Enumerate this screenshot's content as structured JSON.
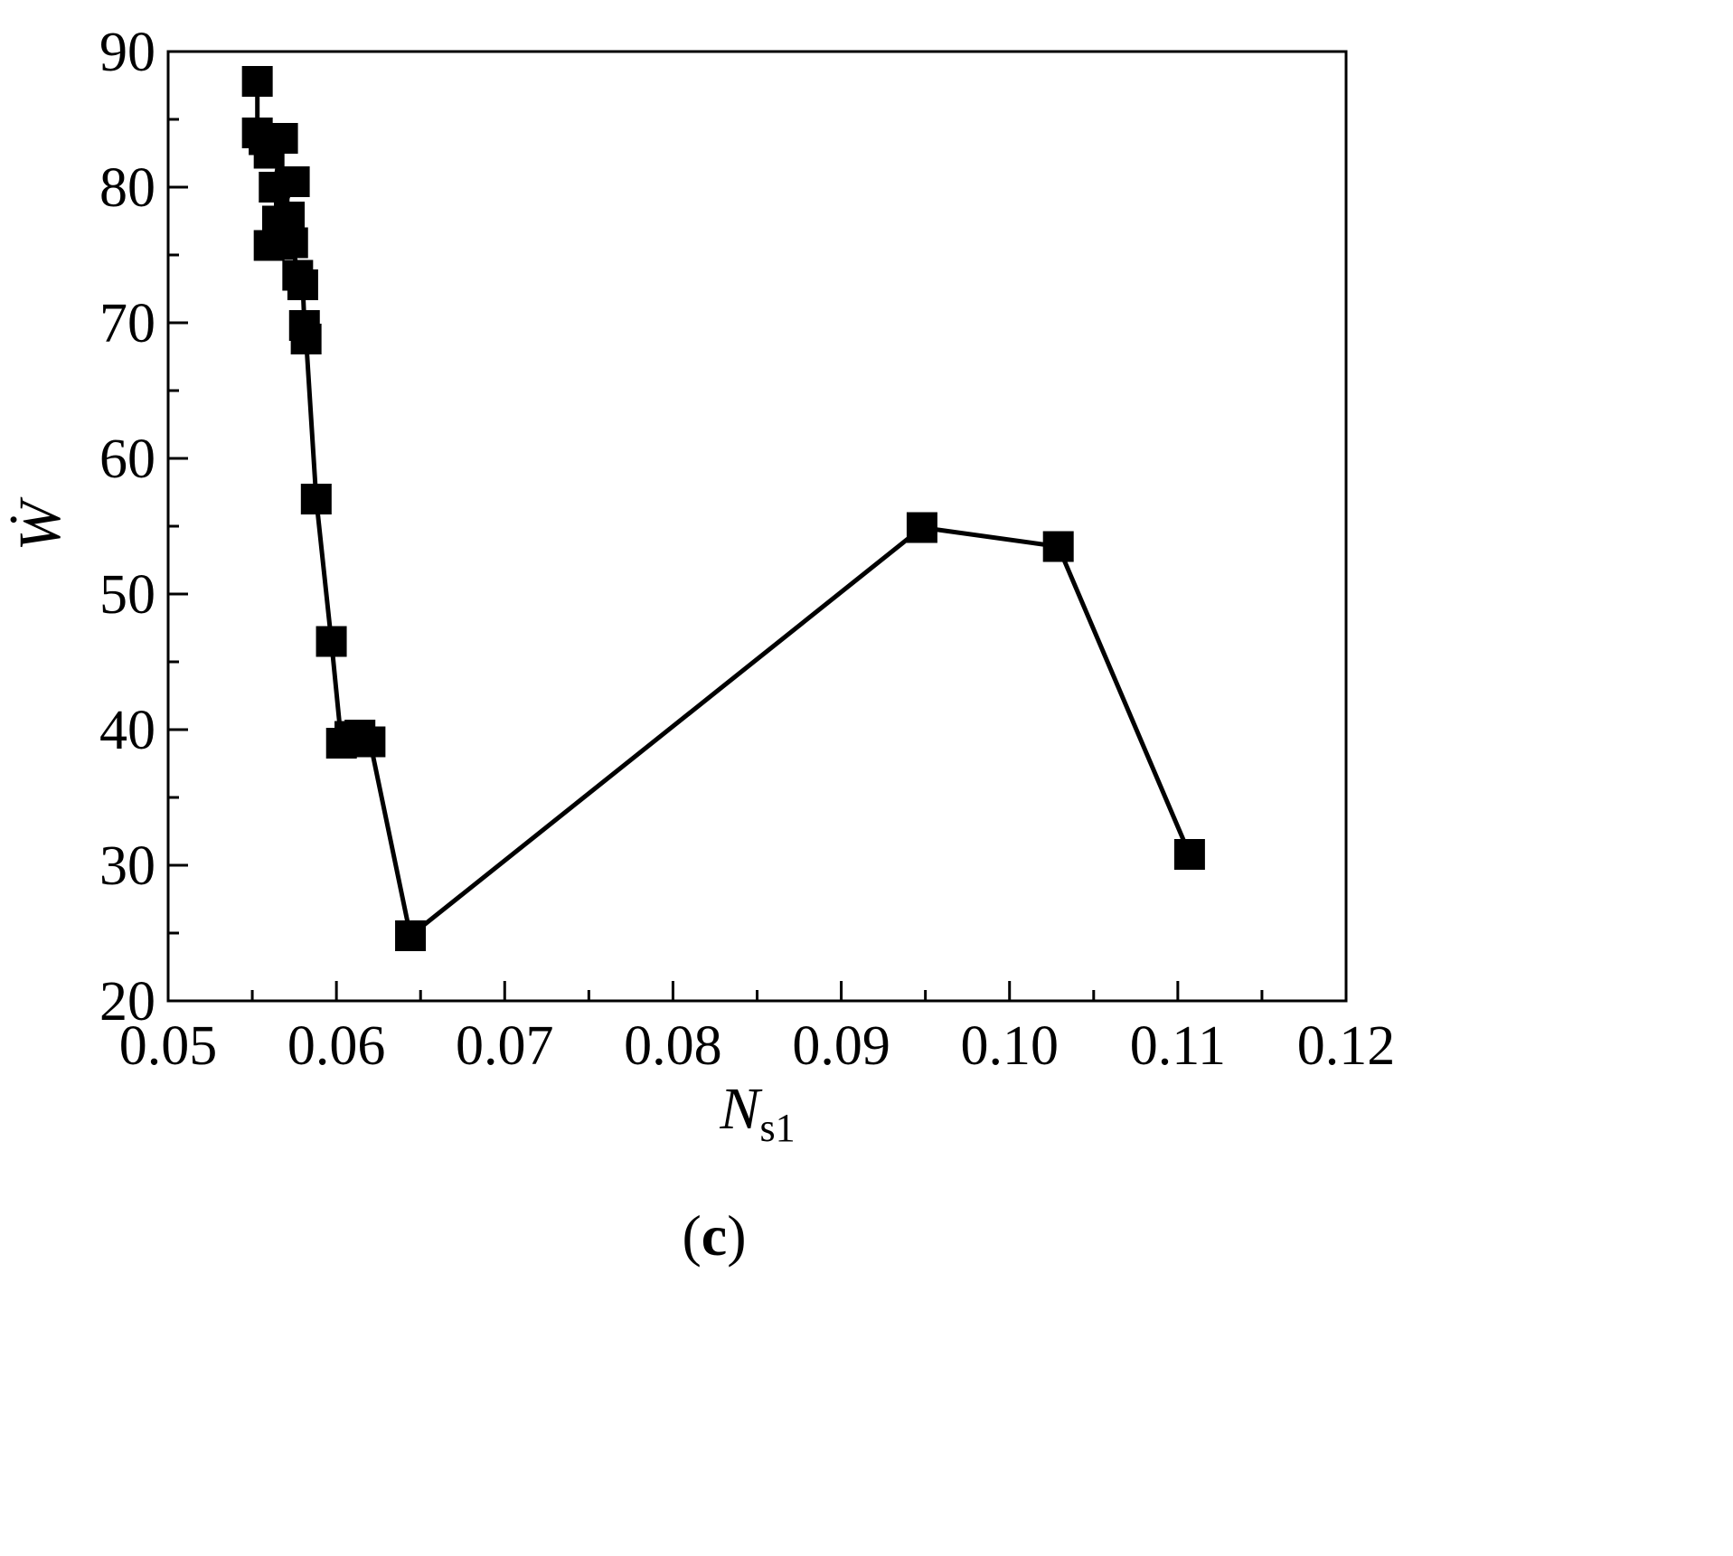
{
  "chart_data": {
    "type": "line",
    "title": "",
    "xlabel": {
      "main": "N",
      "sub": "s1"
    },
    "ylabel": "Ẇ",
    "caption": {
      "open": "(",
      "letter": "c",
      "close": ")"
    },
    "xlim": [
      0.05,
      0.12
    ],
    "ylim": [
      20,
      90
    ],
    "xticks": [
      "0.05",
      "0.06",
      "0.07",
      "0.08",
      "0.09",
      "0.10",
      "0.11",
      "0.12"
    ],
    "yticks": [
      "20",
      "30",
      "40",
      "50",
      "60",
      "70",
      "80",
      "90"
    ],
    "marker": "square",
    "grid": false,
    "series": [
      {
        "color": "#000000",
        "points": [
          {
            "x": 0.0553,
            "y": 87.8
          },
          {
            "x": 0.0553,
            "y": 84.0
          },
          {
            "x": 0.0557,
            "y": 83.5
          },
          {
            "x": 0.056,
            "y": 82.5
          },
          {
            "x": 0.0568,
            "y": 83.6
          },
          {
            "x": 0.0563,
            "y": 80.0
          },
          {
            "x": 0.0575,
            "y": 80.4
          },
          {
            "x": 0.0565,
            "y": 77.5
          },
          {
            "x": 0.0572,
            "y": 77.8
          },
          {
            "x": 0.056,
            "y": 75.7
          },
          {
            "x": 0.0567,
            "y": 75.8
          },
          {
            "x": 0.0574,
            "y": 75.9
          },
          {
            "x": 0.0577,
            "y": 73.5
          },
          {
            "x": 0.058,
            "y": 72.8
          },
          {
            "x": 0.0581,
            "y": 69.8
          },
          {
            "x": 0.0582,
            "y": 68.8
          },
          {
            "x": 0.0588,
            "y": 57.0
          },
          {
            "x": 0.0597,
            "y": 46.5
          },
          {
            "x": 0.0603,
            "y": 39.0
          },
          {
            "x": 0.0608,
            "y": 39.5
          },
          {
            "x": 0.0614,
            "y": 39.6
          },
          {
            "x": 0.062,
            "y": 39.1
          },
          {
            "x": 0.0644,
            "y": 24.8
          },
          {
            "x": 0.0948,
            "y": 54.9
          },
          {
            "x": 0.1029,
            "y": 53.5
          },
          {
            "x": 0.1107,
            "y": 30.8
          }
        ]
      }
    ]
  }
}
